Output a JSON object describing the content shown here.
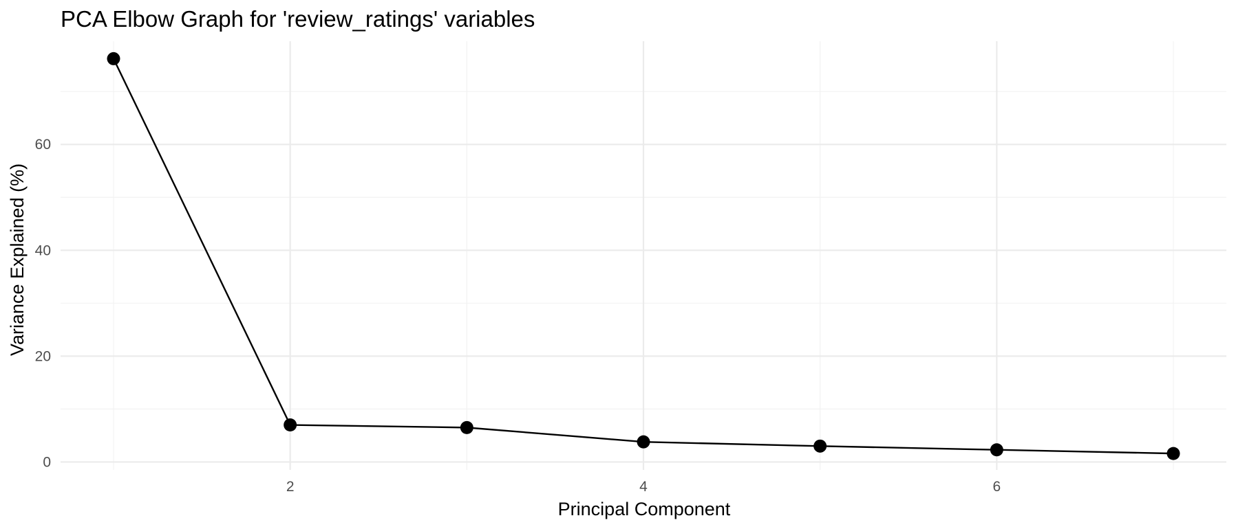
{
  "chart_data": {
    "type": "line",
    "title": "PCA Elbow Graph for 'review_ratings' variables",
    "xlabel": "Principal Component",
    "ylabel": "Variance Explained (%)",
    "x": [
      1,
      2,
      3,
      4,
      5,
      6,
      7
    ],
    "series": [
      {
        "values": [
          76.2,
          7.0,
          6.5,
          3.8,
          3.0,
          2.3,
          1.6
        ]
      }
    ],
    "xlim": [
      0.7,
      7.3
    ],
    "ylim": [
      -1.5,
      79.5
    ],
    "x_ticks": [
      2,
      4,
      6
    ],
    "x_tick_labels": [
      "2",
      "4",
      "6"
    ],
    "y_ticks": [
      0,
      20,
      40,
      60
    ],
    "y_tick_labels": [
      "0",
      "20",
      "40",
      "60"
    ],
    "grid": true,
    "legend": "none",
    "colors": {
      "line": "#000000",
      "points": "#000000",
      "grid_major": "#ebebeb",
      "grid_minor": "#f2f2f2",
      "tick_text": "#4d4d4d",
      "background": "#ffffff"
    }
  }
}
